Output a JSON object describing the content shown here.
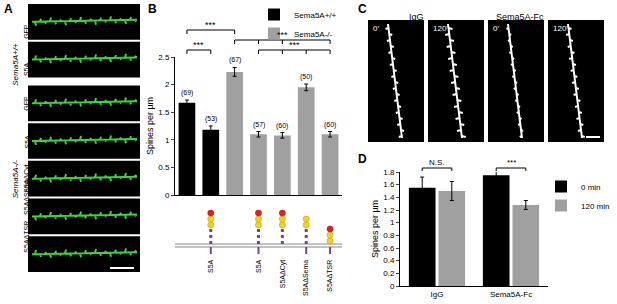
{
  "panel_labels": [
    "A",
    "B",
    "C",
    "D"
  ],
  "panel_a": {
    "groups": [
      {
        "label": "Sema5A+/+",
        "rows": [
          "GFP",
          "S5A"
        ]
      },
      {
        "label": "Sema5A-/-",
        "rows": [
          "GFP",
          "S5A",
          "S5AΔCyt",
          "S5AΔSema",
          "S5AΔTSR"
        ]
      }
    ]
  },
  "panel_c": {
    "groups": [
      {
        "label": "IgG",
        "frames": [
          "0'",
          "120'"
        ]
      },
      {
        "label": "Sema5A-Fc",
        "frames": [
          "0'",
          "120'"
        ]
      }
    ]
  },
  "chart_data": [
    {
      "type": "bar",
      "ylabel": "Spines per µm",
      "categories": [
        null,
        "S5A",
        null,
        "S5A",
        "S5AΔCyt",
        "S5AΔSema",
        "S5AΔTSR"
      ],
      "series": [
        {
          "name": "Sema5A+/+",
          "color": "#000000",
          "values": [
            1.67,
            1.18,
            null,
            null,
            null,
            null,
            null
          ],
          "errors": [
            0.05,
            0.07,
            null,
            null,
            null,
            null,
            null
          ]
        },
        {
          "name": "Sema5A-/-",
          "color": "#a0a0a0",
          "values": [
            null,
            null,
            2.23,
            1.1,
            1.08,
            1.95,
            1.1
          ],
          "errors": [
            null,
            null,
            0.08,
            0.05,
            0.05,
            0.06,
            0.05
          ]
        }
      ],
      "n_labels": [
        "(69)",
        "(53)",
        "(67)",
        "(57)",
        "(60)",
        "(50)",
        "(60)"
      ],
      "significance": [
        {
          "bars": [
            0,
            1
          ],
          "label": "***"
        },
        {
          "bars": [
            5,
            3,
            4,
            6
          ],
          "label": "***"
        },
        {
          "bars": [
            2,
            3,
            4,
            6
          ],
          "label": "***"
        },
        {
          "bars": [
            0,
            2
          ],
          "label": "***"
        }
      ],
      "ylim": [
        0,
        2.5
      ],
      "yticks": [
        0,
        0.5,
        1,
        1.5,
        2,
        2.5
      ],
      "grid": false,
      "legend": "top right"
    },
    {
      "type": "bar",
      "ylabel": "Spines per µm",
      "categories": [
        "IgG",
        "Sema5A-Fc"
      ],
      "series": [
        {
          "name": "0 min",
          "color": "#000000",
          "values": [
            1.55,
            1.75
          ],
          "errors": [
            0.17,
            0.07
          ]
        },
        {
          "name": "120 min",
          "color": "#a0a0a0",
          "values": [
            1.5,
            1.28
          ],
          "errors": [
            0.15,
            0.07
          ]
        }
      ],
      "significance": [
        {
          "category": 0,
          "label": "N.S."
        },
        {
          "category": 1,
          "label": "***"
        }
      ],
      "ylim": [
        0,
        1.8
      ],
      "yticks": [
        0,
        0.2,
        0.4,
        0.6,
        0.8,
        1,
        1.2,
        1.4,
        1.6,
        1.8
      ],
      "grid": false,
      "legend": "top right"
    }
  ]
}
